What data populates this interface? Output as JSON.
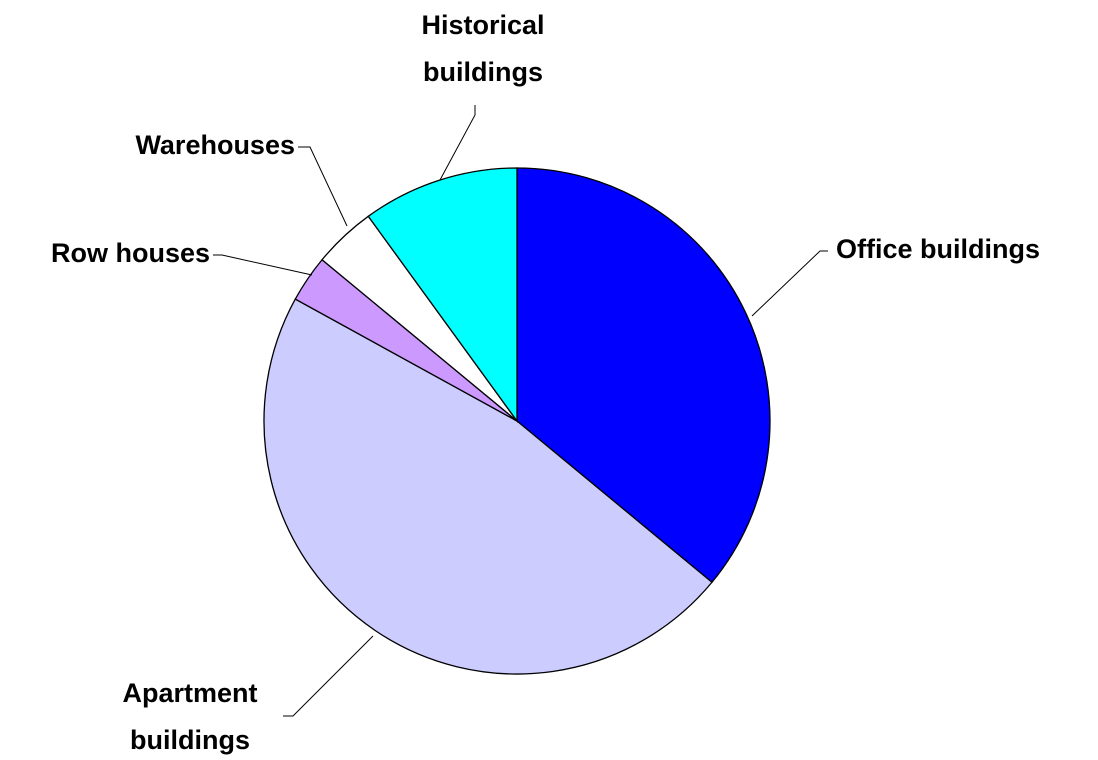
{
  "chart_data": {
    "type": "pie",
    "categories": [
      "Office buildings",
      "Apartment buildings",
      "Row houses",
      "Warehouses",
      "Historical buildings"
    ],
    "values": [
      36,
      47,
      3,
      4,
      10
    ],
    "colors": [
      "#0000ff",
      "#ccccff",
      "#cc99ff",
      "#ffffff",
      "#00ffff"
    ]
  }
}
